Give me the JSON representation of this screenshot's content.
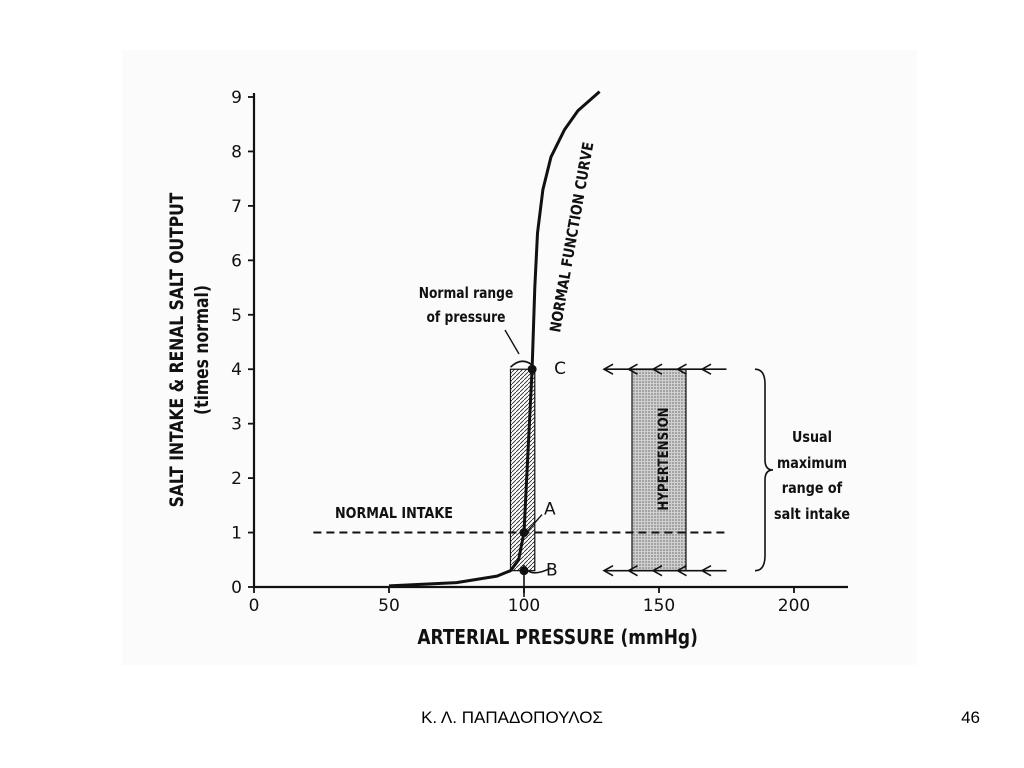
{
  "chart_data": {
    "type": "line",
    "xlabel": "ARTERIAL PRESSURE (mmHg)",
    "ylabel_line1": "SALT INTAKE & RENAL SALT OUTPUT",
    "ylabel_line2": "(times normal)",
    "xlim": [
      0,
      220
    ],
    "ylim": [
      0,
      9
    ],
    "x_ticks": [
      0,
      50,
      100,
      150,
      200
    ],
    "y_ticks": [
      0,
      1,
      2,
      3,
      4,
      5,
      6,
      7,
      8,
      9
    ],
    "series": [
      {
        "name": "NORMAL FUNCTION CURVE",
        "x": [
          50,
          75,
          90,
          95,
          98,
          100,
          101,
          102,
          103,
          104,
          105,
          107,
          110,
          115,
          120,
          128
        ],
        "y": [
          0.02,
          0.08,
          0.2,
          0.3,
          0.5,
          1.0,
          2.0,
          3.0,
          4.0,
          5.5,
          6.5,
          7.3,
          7.9,
          8.4,
          8.75,
          9.1
        ]
      }
    ],
    "reference_lines": [
      {
        "label": "NORMAL INTAKE",
        "y": 1,
        "x_from": 22,
        "x_to": 175,
        "style": "dashed"
      }
    ],
    "points": [
      {
        "label": "A",
        "x": 100,
        "y": 1
      },
      {
        "label": "B",
        "x": 100,
        "y": 0.3
      },
      {
        "label": "C",
        "x": 103,
        "y": 4
      }
    ],
    "regions": [
      {
        "label": "Normal range of pressure",
        "x_from": 95,
        "x_to": 104,
        "y_from": 0.3,
        "y_to": 4
      },
      {
        "label": "HYPERTENSION",
        "x_from": 140,
        "x_to": 160,
        "y_from": 0.3,
        "y_to": 4
      }
    ],
    "annotations": {
      "normal_range_line1": "Normal range",
      "normal_range_line2": "of pressure",
      "salt_range_line1": "Usual",
      "salt_range_line2": "maximum",
      "salt_range_line3": "range of",
      "salt_range_line4": "salt intake"
    }
  },
  "footer": {
    "author": "Κ. Λ. ΠΑΠΑΔΟΠΟΥΛΟΣ",
    "slide_number": "46"
  }
}
